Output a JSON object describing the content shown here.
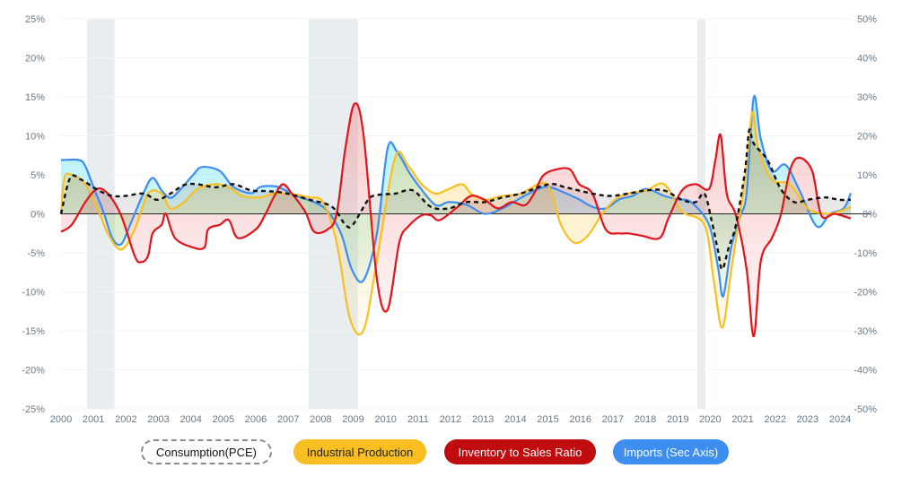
{
  "chart_data": {
    "type": "line",
    "title": "",
    "xlabel": "",
    "ylabel": "",
    "ylim": [
      -25,
      25
    ],
    "y2lim": [
      -50,
      50
    ],
    "xlim": [
      2000,
      2024.4
    ],
    "y_ticks": [
      "25%",
      "20%",
      "15%",
      "10%",
      "5%",
      "0%",
      "-5%",
      "-10%",
      "-15%",
      "-20%",
      "-25%"
    ],
    "y2_ticks": [
      "50%",
      "40%",
      "30%",
      "20%",
      "10%",
      "0%",
      "-10%",
      "-20%",
      "-30%",
      "-40%",
      "-50%"
    ],
    "x_ticks": [
      "2000",
      "2001",
      "2002",
      "2003",
      "2004",
      "2005",
      "2006",
      "2007",
      "2008",
      "2009",
      "2010",
      "2011",
      "2012",
      "2013",
      "2014",
      "2015",
      "2016",
      "2017",
      "2018",
      "2019",
      "2020",
      "2021",
      "2022",
      "2023",
      "2024"
    ],
    "grid": true,
    "legend_position": "bottom",
    "recession_bands": [
      [
        2000.8,
        2001.65
      ],
      [
        2007.63,
        2009.15
      ],
      [
        2019.6,
        2019.85
      ]
    ],
    "colors": {
      "consumption": "#111111",
      "industrial": "#f9bf22",
      "inventory": "#e0141b",
      "imports": "#3d8ef0",
      "band": "#e8eef0"
    },
    "series": [
      {
        "name": "Consumption(PCE)",
        "axis": "left",
        "style": "dashed",
        "x": [
          2000.0,
          2000.28,
          2000.61,
          2001.16,
          2001.58,
          2001.99,
          2002.54,
          2002.96,
          2003.37,
          2003.79,
          2004.2,
          2004.76,
          2005.31,
          2005.86,
          2006.41,
          2006.97,
          2007.66,
          2008.35,
          2008.76,
          2008.99,
          2009.46,
          2009.73,
          2010.29,
          2010.84,
          2011.39,
          2011.95,
          2012.5,
          2013.05,
          2013.6,
          2014.16,
          2015.04,
          2015.54,
          2016.37,
          2016.92,
          2017.47,
          2018.03,
          2018.58,
          2019.13,
          2019.55,
          2019.82,
          2020.04,
          2020.24,
          2020.37,
          2020.57,
          2020.79,
          2021.07,
          2021.2,
          2021.34,
          2021.76,
          2022.17,
          2022.59,
          2023.0,
          2023.55,
          2023.97,
          2024.33
        ],
        "y": [
          0,
          4.6,
          4.4,
          3.0,
          2.3,
          2.3,
          2.6,
          1.8,
          2.6,
          3.7,
          3.8,
          3.4,
          3.8,
          3.0,
          2.9,
          2.6,
          1.8,
          0.9,
          -1.4,
          -1.4,
          1.8,
          2.4,
          2.6,
          3.0,
          0.9,
          0.7,
          1.5,
          1.5,
          2.1,
          2.6,
          3.8,
          3.4,
          2.6,
          2.3,
          2.6,
          3.0,
          3.0,
          1.8,
          1.5,
          2.6,
          -0.8,
          -4.8,
          -7.1,
          -4.3,
          -1.4,
          5.5,
          10.7,
          9.0,
          6.9,
          3.2,
          1.5,
          1.8,
          2.1,
          1.8,
          1.8
        ]
      },
      {
        "name": "Industrial Production",
        "axis": "left",
        "style": "solid",
        "x": [
          2000.0,
          2000.11,
          2000.39,
          2000.75,
          2001.16,
          2001.44,
          2001.85,
          2002.27,
          2002.68,
          2003.1,
          2003.37,
          2003.79,
          2004.2,
          2004.76,
          2005.17,
          2005.58,
          2006.14,
          2006.55,
          2006.97,
          2007.66,
          2008.07,
          2008.49,
          2008.9,
          2009.32,
          2009.73,
          2010.29,
          2010.7,
          2011.11,
          2011.53,
          2011.95,
          2012.36,
          2012.63,
          2013.05,
          2013.6,
          2014.16,
          2014.71,
          2015.04,
          2015.4,
          2015.81,
          2016.23,
          2016.64,
          2017.06,
          2017.47,
          2018.03,
          2018.58,
          2019.13,
          2019.82,
          2020.1,
          2020.37,
          2020.65,
          2021.07,
          2021.29,
          2021.48,
          2021.9,
          2022.45,
          2023.0,
          2023.55,
          2023.97,
          2024.33
        ],
        "y": [
          0,
          4.7,
          4.9,
          3.8,
          0.3,
          -2.5,
          -4.6,
          -2.0,
          2.6,
          2.6,
          0.7,
          1.5,
          3.2,
          3.8,
          3.4,
          2.3,
          2.1,
          2.6,
          2.6,
          2.1,
          1.5,
          -3.7,
          -13.4,
          -14.9,
          -6.0,
          7.2,
          6.1,
          3.8,
          2.6,
          3.2,
          3.8,
          2.6,
          1.8,
          2.3,
          2.6,
          3.8,
          3.4,
          -1.4,
          -3.7,
          -2.8,
          -0.2,
          1.8,
          2.6,
          3.0,
          3.8,
          0.3,
          -1.4,
          -8.3,
          -14.6,
          -7.1,
          4.4,
          13.0,
          8.4,
          4.4,
          3.8,
          0.7,
          0,
          0.3,
          0.9
        ]
      },
      {
        "name": "Inventory to Sales Ratio",
        "axis": "left",
        "style": "solid",
        "x": [
          2000.0,
          2000.33,
          2000.75,
          2001.11,
          2001.44,
          2001.85,
          2002.27,
          2002.46,
          2002.68,
          2002.82,
          2003.1,
          2003.23,
          2003.51,
          2004.06,
          2004.42,
          2004.53,
          2004.89,
          2005.17,
          2005.45,
          2006.0,
          2006.28,
          2006.55,
          2006.83,
          2007.11,
          2007.52,
          2007.8,
          2008.21,
          2008.49,
          2008.76,
          2009.04,
          2009.32,
          2009.73,
          2010.06,
          2010.42,
          2010.7,
          2011.11,
          2011.39,
          2011.67,
          2012.22,
          2012.63,
          2013.05,
          2013.46,
          2013.88,
          2014.29,
          2014.57,
          2014.85,
          2015.26,
          2015.68,
          2015.96,
          2016.37,
          2016.78,
          2017.2,
          2017.47,
          2017.89,
          2018.44,
          2018.72,
          2019.13,
          2019.55,
          2019.96,
          2020.15,
          2020.32,
          2020.51,
          2020.79,
          2021.12,
          2021.34,
          2021.56,
          2021.9,
          2022.17,
          2022.45,
          2022.73,
          2023.14,
          2023.42,
          2023.83,
          2024.33
        ],
        "y": [
          -2.3,
          -1.4,
          1.5,
          3.2,
          2.6,
          -0.2,
          -5.4,
          -6.2,
          -5.4,
          -2.5,
          -1.4,
          0,
          -3.1,
          -4.3,
          -4.3,
          -2.0,
          -1.4,
          -0.8,
          -3.1,
          -2.0,
          -0.2,
          2.1,
          3.8,
          2.6,
          0.3,
          -2.3,
          -2.0,
          0,
          8.4,
          14.1,
          10.1,
          -8.3,
          -12.3,
          -3.7,
          -1.6,
          -0.2,
          -0.2,
          -0.8,
          0.9,
          2.3,
          1.8,
          0.7,
          1.5,
          1.1,
          2.6,
          4.9,
          5.7,
          5.7,
          3.8,
          2.6,
          -2.0,
          -2.5,
          -2.5,
          -2.8,
          -3.1,
          -0.5,
          3.0,
          3.8,
          3.2,
          6.7,
          10.1,
          2.6,
          -0.2,
          -7.1,
          -15.7,
          -6.0,
          -3.1,
          -0.2,
          5.5,
          7.2,
          5.5,
          -0.2,
          0,
          -0.6
        ]
      },
      {
        "name": "Imports (Sec Axis)",
        "axis": "right",
        "style": "solid",
        "x": [
          2000.0,
          2000.55,
          2000.75,
          2001.02,
          2001.3,
          2001.58,
          2001.85,
          2002.13,
          2002.54,
          2002.82,
          2003.1,
          2003.37,
          2003.65,
          2004.06,
          2004.34,
          2004.89,
          2005.31,
          2005.86,
          2006.14,
          2006.55,
          2006.83,
          2007.24,
          2007.8,
          2008.21,
          2008.63,
          2008.96,
          2009.32,
          2009.73,
          2010.06,
          2010.34,
          2010.7,
          2010.98,
          2011.53,
          2011.95,
          2012.5,
          2013.05,
          2013.6,
          2014.16,
          2014.71,
          2015.04,
          2015.54,
          2015.96,
          2016.37,
          2016.78,
          2017.2,
          2017.61,
          2018.03,
          2018.58,
          2018.99,
          2019.41,
          2019.96,
          2020.24,
          2020.4,
          2020.65,
          2020.93,
          2021.12,
          2021.34,
          2021.56,
          2021.9,
          2022.31,
          2022.73,
          2023.28,
          2023.69,
          2024.11,
          2024.33
        ],
        "y": [
          13.8,
          13.8,
          12.2,
          6.4,
          0.7,
          -6.2,
          -7.8,
          -2.8,
          5.3,
          9.2,
          6.0,
          4.1,
          6.0,
          9.9,
          12.0,
          11.0,
          6.9,
          5.3,
          6.9,
          7.1,
          6.4,
          4.6,
          3.0,
          0.7,
          -5.1,
          -14.3,
          -17.0,
          -5.1,
          16.8,
          16.1,
          11.0,
          7.6,
          2.3,
          3.0,
          2.3,
          0,
          1.4,
          4.1,
          6.4,
          6.9,
          5.3,
          3.7,
          1.8,
          1.4,
          3.7,
          4.6,
          6.4,
          4.6,
          3.7,
          3.0,
          -2.8,
          -13.8,
          -21.1,
          -8.5,
          -0.5,
          5.3,
          29.9,
          19.1,
          11.0,
          12.6,
          6.4,
          -3.2,
          0,
          1.4,
          5.3
        ]
      }
    ]
  }
}
